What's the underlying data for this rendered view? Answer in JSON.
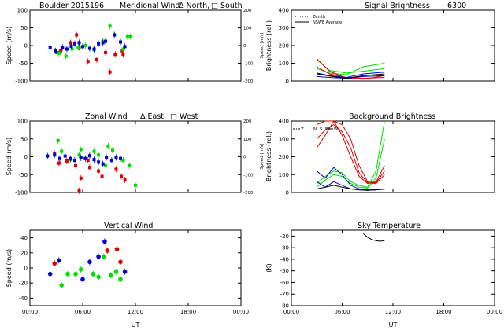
{
  "figure": {
    "station_date": "Boulder  2015196",
    "xlabel": "UT",
    "xticks": [
      "00:00",
      "06:00",
      "12:00",
      "18:00",
      "00:00"
    ]
  },
  "colors": {
    "red": "#dd0000",
    "green": "#00dd00",
    "blue": "#0000cc",
    "black": "#000000"
  },
  "chart_data": [
    {
      "id": "meridional",
      "type": "scatter",
      "title": "Meridional Wind",
      "legend_text": [
        "Δ North,",
        "□ South"
      ],
      "ylabel": "Speed (m/s)",
      "ylabel_right": "Speed (m/s)",
      "xlim": [
        0,
        24
      ],
      "ylim": [
        -100,
        100
      ],
      "yticks": [
        -100,
        -50,
        0,
        50,
        100
      ],
      "y2lim": [
        -200,
        200
      ],
      "y2ticks": [
        -200,
        -100,
        0,
        100,
        200
      ],
      "series": [
        {
          "color": "red",
          "points": [
            [
              3.1,
              -20
            ],
            [
              3.5,
              -15
            ],
            [
              4.6,
              8
            ],
            [
              5.3,
              30
            ],
            [
              5.6,
              -5
            ],
            [
              6.6,
              -45
            ],
            [
              7.6,
              -40
            ],
            [
              8.6,
              -20
            ],
            [
              9.1,
              -75
            ],
            [
              9.7,
              -25
            ],
            [
              10.5,
              -15
            ],
            [
              10.6,
              -25
            ]
          ]
        },
        {
          "color": "green",
          "points": [
            [
              3.3,
              -22
            ],
            [
              4.1,
              -30
            ],
            [
              4.8,
              -10
            ],
            [
              5.5,
              -5
            ],
            [
              6.3,
              0
            ],
            [
              7.3,
              -12
            ],
            [
              8.3,
              12
            ],
            [
              9.1,
              55
            ],
            [
              9.6,
              30
            ],
            [
              10.6,
              -10
            ],
            [
              11.1,
              25
            ],
            [
              11.4,
              25
            ]
          ]
        },
        {
          "color": "blue",
          "points": [
            [
              2.3,
              -5
            ],
            [
              2.9,
              -15
            ],
            [
              3.7,
              -5
            ],
            [
              4.2,
              -10
            ],
            [
              4.7,
              -2
            ],
            [
              5.1,
              5
            ],
            [
              5.6,
              8
            ],
            [
              6.0,
              -3
            ],
            [
              6.8,
              -8
            ],
            [
              7.3,
              -10
            ],
            [
              7.8,
              5
            ],
            [
              8.3,
              8
            ],
            [
              8.6,
              12
            ],
            [
              9.6,
              30
            ],
            [
              10.3,
              10
            ],
            [
              10.8,
              -3
            ]
          ]
        }
      ]
    },
    {
      "id": "zonal",
      "type": "scatter",
      "title": "Zonal Wind",
      "legend_text": [
        "Δ East,",
        "□ West"
      ],
      "ylabel": "Speed (m/s)",
      "ylabel_right": "Speed (m/s)",
      "xlim": [
        0,
        24
      ],
      "ylim": [
        -100,
        100
      ],
      "yticks": [
        -100,
        -50,
        0,
        50,
        100
      ],
      "y2lim": [
        -200,
        200
      ],
      "y2ticks": [
        -200,
        -100,
        0,
        100,
        200
      ],
      "series": [
        {
          "color": "red",
          "points": [
            [
              2.8,
              8
            ],
            [
              3.3,
              -18
            ],
            [
              4.2,
              -12
            ],
            [
              5.2,
              -25
            ],
            [
              5.6,
              -95
            ],
            [
              5.8,
              -60
            ],
            [
              6.6,
              -10
            ],
            [
              6.8,
              -30
            ],
            [
              7.8,
              -40
            ],
            [
              8.2,
              -55
            ],
            [
              9.8,
              -35
            ],
            [
              10.4,
              -55
            ],
            [
              10.6,
              -10
            ],
            [
              10.8,
              -65
            ]
          ]
        },
        {
          "color": "green",
          "points": [
            [
              3.2,
              45
            ],
            [
              3.6,
              15
            ],
            [
              4.6,
              -8
            ],
            [
              5.6,
              5
            ],
            [
              5.8,
              20
            ],
            [
              6.3,
              -5
            ],
            [
              7.3,
              15
            ],
            [
              7.8,
              5
            ],
            [
              8.6,
              -25
            ],
            [
              8.9,
              30
            ],
            [
              9.4,
              18
            ],
            [
              10.6,
              -10
            ],
            [
              11.3,
              -25
            ],
            [
              12.0,
              -80
            ]
          ]
        },
        {
          "color": "blue",
          "points": [
            [
              2.0,
              2
            ],
            [
              2.8,
              5
            ],
            [
              3.4,
              -5
            ],
            [
              4.0,
              2
            ],
            [
              4.6,
              -5
            ],
            [
              5.1,
              -10
            ],
            [
              5.8,
              -3
            ],
            [
              6.3,
              -5
            ],
            [
              6.8,
              3
            ],
            [
              7.3,
              -8
            ],
            [
              7.8,
              -15
            ],
            [
              8.3,
              -20
            ],
            [
              8.7,
              -2
            ],
            [
              9.3,
              -10
            ],
            [
              9.8,
              -2
            ],
            [
              10.3,
              -5
            ]
          ]
        }
      ]
    },
    {
      "id": "vertical",
      "type": "scatter",
      "title": "Vertical Wind",
      "ylabel": "Speed (m/s)",
      "xlim": [
        0,
        24
      ],
      "ylim": [
        -50,
        50
      ],
      "yticks": [
        -40,
        -20,
        0,
        20,
        40
      ],
      "series": [
        {
          "color": "red",
          "points": [
            [
              2.8,
              6
            ],
            [
              8.8,
              23
            ],
            [
              9.9,
              25
            ],
            [
              10.3,
              8
            ]
          ]
        },
        {
          "color": "green",
          "points": [
            [
              3.6,
              -23
            ],
            [
              4.3,
              -8
            ],
            [
              5.2,
              -8
            ],
            [
              5.8,
              -2
            ],
            [
              7.2,
              -8
            ],
            [
              7.8,
              -12
            ],
            [
              8.4,
              15
            ],
            [
              9.2,
              -10
            ],
            [
              9.8,
              -5
            ],
            [
              10.3,
              -15
            ]
          ]
        },
        {
          "color": "blue",
          "points": [
            [
              2.3,
              -8
            ],
            [
              3.3,
              10
            ],
            [
              6.0,
              -15
            ],
            [
              6.8,
              8
            ],
            [
              7.8,
              15
            ],
            [
              8.5,
              35
            ],
            [
              10.8,
              -5
            ]
          ]
        }
      ]
    },
    {
      "id": "signal",
      "type": "line",
      "title": "Signal Brightness",
      "title_right": "6300",
      "ylabel": "Brightness (rel.)",
      "xlim": [
        0,
        24
      ],
      "ylim": [
        0,
        400
      ],
      "yticks": [
        0,
        100,
        200,
        300,
        400
      ],
      "legend": [
        {
          "label": "Zenith",
          "style": "dotted"
        },
        {
          "label": "NSWE Average",
          "style": "solid"
        }
      ],
      "series": [
        {
          "color": "green",
          "points": [
            [
              3,
              70
            ],
            [
              4.5,
              45
            ],
            [
              6.5,
              35
            ],
            [
              8.5,
              80
            ],
            [
              11,
              100
            ]
          ]
        },
        {
          "color": "green",
          "points": [
            [
              3,
              120
            ],
            [
              4.5,
              60
            ],
            [
              6.5,
              45
            ],
            [
              8.5,
              55
            ],
            [
              11,
              70
            ]
          ]
        },
        {
          "color": "red",
          "points": [
            [
              3,
              125
            ],
            [
              4.5,
              55
            ],
            [
              6.5,
              15
            ],
            [
              8.5,
              10
            ],
            [
              11,
              30
            ]
          ]
        },
        {
          "color": "red",
          "points": [
            [
              3,
              80
            ],
            [
              4.5,
              40
            ],
            [
              6.5,
              20
            ],
            [
              8.5,
              15
            ],
            [
              11,
              20
            ]
          ]
        },
        {
          "color": "blue",
          "points": [
            [
              3,
              45
            ],
            [
              4.5,
              30
            ],
            [
              6.5,
              20
            ],
            [
              8.5,
              40
            ],
            [
              11,
              50
            ]
          ]
        },
        {
          "color": "blue",
          "points": [
            [
              3,
              25
            ],
            [
              4.5,
              20
            ],
            [
              6.5,
              15
            ],
            [
              8.5,
              25
            ],
            [
              11,
              30
            ]
          ]
        },
        {
          "color": "black",
          "points": [
            [
              3,
              40
            ],
            [
              4.5,
              28
            ],
            [
              6.5,
              15
            ],
            [
              8.5,
              30
            ],
            [
              11,
              40
            ]
          ]
        }
      ]
    },
    {
      "id": "background",
      "type": "line",
      "title": "Background Brightness",
      "ylabel": "Brightness (rel.)",
      "xlim": [
        0,
        24
      ],
      "ylim": [
        0,
        400
      ],
      "yticks": [
        0,
        100,
        200,
        300,
        400
      ],
      "legend_letters": [
        "Z",
        "N",
        "S",
        "E",
        "W"
      ],
      "series": [
        {
          "color": "red",
          "points": [
            [
              3,
              380
            ],
            [
              4,
              400
            ],
            [
              5,
              400
            ],
            [
              6,
              380
            ],
            [
              7,
              300
            ],
            [
              8,
              150
            ],
            [
              9,
              60
            ],
            [
              10,
              60
            ],
            [
              11,
              150
            ]
          ]
        },
        {
          "color": "red",
          "points": [
            [
              3,
              300
            ],
            [
              4,
              350
            ],
            [
              5,
              380
            ],
            [
              6,
              340
            ],
            [
              7,
              250
            ],
            [
              8,
              110
            ],
            [
              9,
              55
            ],
            [
              10,
              55
            ],
            [
              11,
              120
            ]
          ]
        },
        {
          "color": "red",
          "points": [
            [
              3,
              250
            ],
            [
              4,
              320
            ],
            [
              5,
              400
            ],
            [
              6,
              320
            ],
            [
              7,
              200
            ],
            [
              8,
              90
            ],
            [
              9,
              50
            ],
            [
              10,
              50
            ],
            [
              11,
              100
            ]
          ]
        },
        {
          "color": "green",
          "points": [
            [
              3,
              50
            ],
            [
              4,
              90
            ],
            [
              5,
              120
            ],
            [
              6,
              110
            ],
            [
              7,
              60
            ],
            [
              8,
              40
            ],
            [
              9,
              30
            ],
            [
              10,
              120
            ],
            [
              11,
              400
            ]
          ]
        },
        {
          "color": "green",
          "points": [
            [
              3,
              30
            ],
            [
              4,
              70
            ],
            [
              5,
              100
            ],
            [
              6,
              90
            ],
            [
              7,
              50
            ],
            [
              8,
              30
            ],
            [
              9,
              25
            ],
            [
              10,
              80
            ],
            [
              11,
              300
            ]
          ]
        },
        {
          "color": "blue",
          "points": [
            [
              3,
              120
            ],
            [
              4,
              80
            ],
            [
              5,
              140
            ],
            [
              6,
              100
            ],
            [
              7,
              40
            ],
            [
              8,
              20
            ],
            [
              9,
              15
            ],
            [
              10,
              15
            ],
            [
              11,
              20
            ]
          ]
        },
        {
          "color": "blue",
          "points": [
            [
              3,
              60
            ],
            [
              4,
              30
            ],
            [
              5,
              60
            ],
            [
              6,
              40
            ],
            [
              7,
              20
            ],
            [
              8,
              15
            ],
            [
              9,
              12
            ],
            [
              10,
              15
            ],
            [
              11,
              18
            ]
          ]
        },
        {
          "color": "black",
          "points": [
            [
              3,
              20
            ],
            [
              4,
              30
            ],
            [
              5,
              40
            ],
            [
              6,
              30
            ],
            [
              7,
              20
            ],
            [
              8,
              15
            ],
            [
              9,
              12
            ],
            [
              10,
              15
            ],
            [
              11,
              20
            ]
          ]
        }
      ]
    },
    {
      "id": "skytemp",
      "type": "line",
      "title": "Sky Temperature",
      "ylabel": "(K)",
      "xlim": [
        0,
        24
      ],
      "ylim": [
        -80,
        -15
      ],
      "yticks": [
        -80,
        -70,
        -60,
        -50,
        -40,
        -30,
        -20
      ],
      "series": [
        {
          "color": "black",
          "points": [
            [
              8.5,
              -18
            ],
            [
              9,
              -21
            ],
            [
              9.5,
              -23
            ],
            [
              10,
              -24
            ],
            [
              10.5,
              -24.5
            ],
            [
              11,
              -24
            ]
          ]
        }
      ]
    }
  ]
}
